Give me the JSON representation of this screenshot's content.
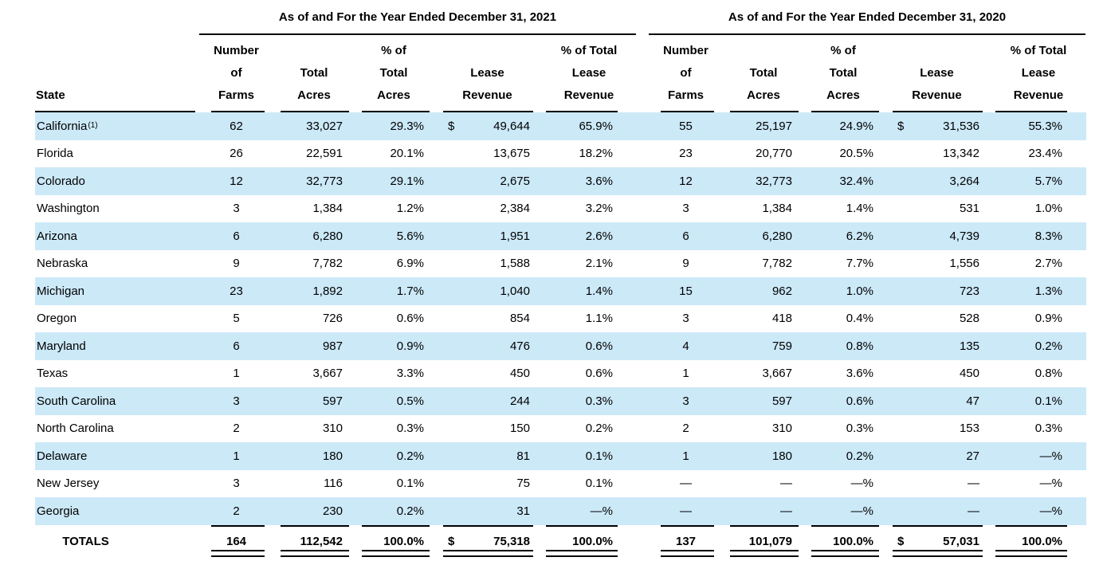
{
  "colors": {
    "stripe": "#cce9f8",
    "text": "#000000",
    "background": "#ffffff"
  },
  "table": {
    "group_headers": [
      "As of and For the Year Ended December 31, 2021",
      "As of and For the Year Ended December 31, 2020"
    ],
    "state_column_header": "State",
    "year_column_headers": [
      [
        "Number",
        "of",
        "Farms"
      ],
      [
        "",
        "Total",
        "Acres"
      ],
      [
        "% of",
        "Total",
        "Acres"
      ],
      [
        "",
        "Lease",
        "Revenue"
      ],
      [
        "% of Total",
        "Lease",
        "Revenue"
      ]
    ],
    "rows": [
      {
        "state": "California",
        "superscript": "(1)",
        "y2021": {
          "farms": "62",
          "acres": "33,027",
          "pct_acres": "29.3%",
          "dollar": "$",
          "lease": "49,644",
          "pct_lease": "65.9%"
        },
        "y2020": {
          "farms": "55",
          "acres": "25,197",
          "pct_acres": "24.9%",
          "dollar": "$",
          "lease": "31,536",
          "pct_lease": "55.3%"
        }
      },
      {
        "state": "Florida",
        "superscript": "",
        "y2021": {
          "farms": "26",
          "acres": "22,591",
          "pct_acres": "20.1%",
          "dollar": "",
          "lease": "13,675",
          "pct_lease": "18.2%"
        },
        "y2020": {
          "farms": "23",
          "acres": "20,770",
          "pct_acres": "20.5%",
          "dollar": "",
          "lease": "13,342",
          "pct_lease": "23.4%"
        }
      },
      {
        "state": "Colorado",
        "superscript": "",
        "y2021": {
          "farms": "12",
          "acres": "32,773",
          "pct_acres": "29.1%",
          "dollar": "",
          "lease": "2,675",
          "pct_lease": "3.6%"
        },
        "y2020": {
          "farms": "12",
          "acres": "32,773",
          "pct_acres": "32.4%",
          "dollar": "",
          "lease": "3,264",
          "pct_lease": "5.7%"
        }
      },
      {
        "state": "Washington",
        "superscript": "",
        "y2021": {
          "farms": "3",
          "acres": "1,384",
          "pct_acres": "1.2%",
          "dollar": "",
          "lease": "2,384",
          "pct_lease": "3.2%"
        },
        "y2020": {
          "farms": "3",
          "acres": "1,384",
          "pct_acres": "1.4%",
          "dollar": "",
          "lease": "531",
          "pct_lease": "1.0%"
        }
      },
      {
        "state": "Arizona",
        "superscript": "",
        "y2021": {
          "farms": "6",
          "acres": "6,280",
          "pct_acres": "5.6%",
          "dollar": "",
          "lease": "1,951",
          "pct_lease": "2.6%"
        },
        "y2020": {
          "farms": "6",
          "acres": "6,280",
          "pct_acres": "6.2%",
          "dollar": "",
          "lease": "4,739",
          "pct_lease": "8.3%"
        }
      },
      {
        "state": "Nebraska",
        "superscript": "",
        "y2021": {
          "farms": "9",
          "acres": "7,782",
          "pct_acres": "6.9%",
          "dollar": "",
          "lease": "1,588",
          "pct_lease": "2.1%"
        },
        "y2020": {
          "farms": "9",
          "acres": "7,782",
          "pct_acres": "7.7%",
          "dollar": "",
          "lease": "1,556",
          "pct_lease": "2.7%"
        }
      },
      {
        "state": "Michigan",
        "superscript": "",
        "y2021": {
          "farms": "23",
          "acres": "1,892",
          "pct_acres": "1.7%",
          "dollar": "",
          "lease": "1,040",
          "pct_lease": "1.4%"
        },
        "y2020": {
          "farms": "15",
          "acres": "962",
          "pct_acres": "1.0%",
          "dollar": "",
          "lease": "723",
          "pct_lease": "1.3%"
        }
      },
      {
        "state": "Oregon",
        "superscript": "",
        "y2021": {
          "farms": "5",
          "acres": "726",
          "pct_acres": "0.6%",
          "dollar": "",
          "lease": "854",
          "pct_lease": "1.1%"
        },
        "y2020": {
          "farms": "3",
          "acres": "418",
          "pct_acres": "0.4%",
          "dollar": "",
          "lease": "528",
          "pct_lease": "0.9%"
        }
      },
      {
        "state": "Maryland",
        "superscript": "",
        "y2021": {
          "farms": "6",
          "acres": "987",
          "pct_acres": "0.9%",
          "dollar": "",
          "lease": "476",
          "pct_lease": "0.6%"
        },
        "y2020": {
          "farms": "4",
          "acres": "759",
          "pct_acres": "0.8%",
          "dollar": "",
          "lease": "135",
          "pct_lease": "0.2%"
        }
      },
      {
        "state": "Texas",
        "superscript": "",
        "y2021": {
          "farms": "1",
          "acres": "3,667",
          "pct_acres": "3.3%",
          "dollar": "",
          "lease": "450",
          "pct_lease": "0.6%"
        },
        "y2020": {
          "farms": "1",
          "acres": "3,667",
          "pct_acres": "3.6%",
          "dollar": "",
          "lease": "450",
          "pct_lease": "0.8%"
        }
      },
      {
        "state": "South Carolina",
        "superscript": "",
        "y2021": {
          "farms": "3",
          "acres": "597",
          "pct_acres": "0.5%",
          "dollar": "",
          "lease": "244",
          "pct_lease": "0.3%"
        },
        "y2020": {
          "farms": "3",
          "acres": "597",
          "pct_acres": "0.6%",
          "dollar": "",
          "lease": "47",
          "pct_lease": "0.1%"
        }
      },
      {
        "state": "North Carolina",
        "superscript": "",
        "y2021": {
          "farms": "2",
          "acres": "310",
          "pct_acres": "0.3%",
          "dollar": "",
          "lease": "150",
          "pct_lease": "0.2%"
        },
        "y2020": {
          "farms": "2",
          "acres": "310",
          "pct_acres": "0.3%",
          "dollar": "",
          "lease": "153",
          "pct_lease": "0.3%"
        }
      },
      {
        "state": "Delaware",
        "superscript": "",
        "y2021": {
          "farms": "1",
          "acres": "180",
          "pct_acres": "0.2%",
          "dollar": "",
          "lease": "81",
          "pct_lease": "0.1%"
        },
        "y2020": {
          "farms": "1",
          "acres": "180",
          "pct_acres": "0.2%",
          "dollar": "",
          "lease": "27",
          "pct_lease": "—%"
        }
      },
      {
        "state": "New Jersey",
        "superscript": "",
        "y2021": {
          "farms": "3",
          "acres": "116",
          "pct_acres": "0.1%",
          "dollar": "",
          "lease": "75",
          "pct_lease": "0.1%"
        },
        "y2020": {
          "farms": "—",
          "acres": "—",
          "pct_acres": "—%",
          "dollar": "",
          "lease": "—",
          "pct_lease": "—%"
        }
      },
      {
        "state": "Georgia",
        "superscript": "",
        "y2021": {
          "farms": "2",
          "acres": "230",
          "pct_acres": "0.2%",
          "dollar": "",
          "lease": "31",
          "pct_lease": "—%"
        },
        "y2020": {
          "farms": "—",
          "acres": "—",
          "pct_acres": "—%",
          "dollar": "",
          "lease": "—",
          "pct_lease": "—%"
        }
      }
    ],
    "totals": {
      "label": "TOTALS",
      "y2021": {
        "farms": "164",
        "acres": "112,542",
        "pct_acres": "100.0%",
        "dollar": "$",
        "lease": "75,318",
        "pct_lease": "100.0%"
      },
      "y2020": {
        "farms": "137",
        "acres": "101,079",
        "pct_acres": "100.0%",
        "dollar": "$",
        "lease": "57,031",
        "pct_lease": "100.0%"
      }
    }
  }
}
